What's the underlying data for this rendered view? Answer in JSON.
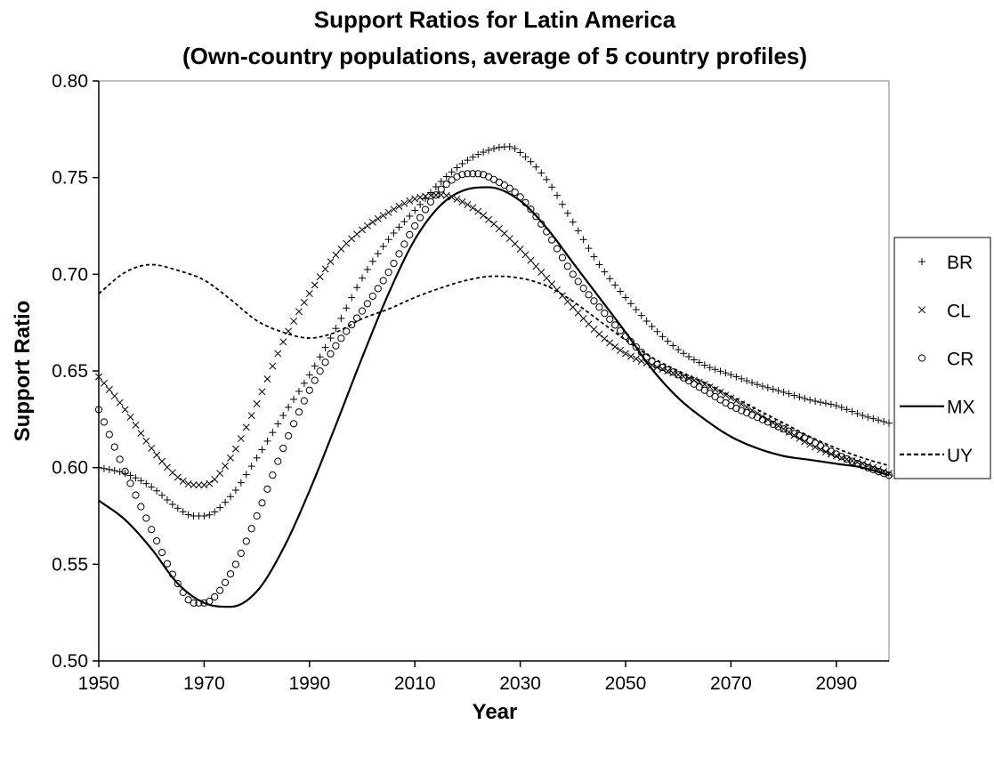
{
  "chart_data": {
    "type": "line",
    "title": "Support Ratios for Latin America",
    "subtitle": "(Own-country populations, average of 5 country profiles)",
    "xlabel": "Year",
    "ylabel": "Support Ratio",
    "xlim": [
      1950,
      2100
    ],
    "ylim": [
      0.5,
      0.8
    ],
    "x_ticks": [
      1950,
      1970,
      1990,
      2010,
      2030,
      2050,
      2070,
      2090
    ],
    "y_ticks": [
      0.5,
      0.55,
      0.6,
      0.65,
      0.7,
      0.75,
      0.8
    ],
    "x_tick_labels": [
      "1950",
      "1970",
      "1990",
      "2010",
      "2030",
      "2050",
      "2070",
      "2090"
    ],
    "y_tick_labels": [
      "0.50",
      "0.55",
      "0.60",
      "0.65",
      "0.70",
      "0.75",
      "0.80"
    ],
    "grid": false,
    "legend_position": "right",
    "series": [
      {
        "name": "BR",
        "style": "plus-markers",
        "color": "#000000",
        "x": [
          1950,
          1955,
          1960,
          1965,
          1968,
          1970,
          1975,
          1980,
          1985,
          1990,
          1995,
          2000,
          2005,
          2010,
          2015,
          2020,
          2025,
          2028,
          2030,
          2035,
          2040,
          2045,
          2050,
          2055,
          2060,
          2065,
          2070,
          2075,
          2080,
          2085,
          2090,
          2095,
          2100
        ],
        "y": [
          0.6,
          0.597,
          0.59,
          0.579,
          0.575,
          0.575,
          0.585,
          0.605,
          0.627,
          0.648,
          0.672,
          0.698,
          0.718,
          0.733,
          0.748,
          0.759,
          0.765,
          0.766,
          0.763,
          0.749,
          0.727,
          0.705,
          0.688,
          0.673,
          0.661,
          0.653,
          0.648,
          0.643,
          0.639,
          0.635,
          0.632,
          0.627,
          0.623
        ]
      },
      {
        "name": "CL",
        "style": "x-markers",
        "color": "#000000",
        "x": [
          1950,
          1955,
          1960,
          1965,
          1968,
          1970,
          1975,
          1980,
          1985,
          1990,
          1995,
          2000,
          2005,
          2010,
          2015,
          2020,
          2025,
          2030,
          2035,
          2040,
          2045,
          2050,
          2055,
          2060,
          2065,
          2070,
          2075,
          2080,
          2085,
          2090,
          2095,
          2100
        ],
        "y": [
          0.647,
          0.63,
          0.61,
          0.595,
          0.591,
          0.591,
          0.605,
          0.633,
          0.665,
          0.69,
          0.71,
          0.723,
          0.732,
          0.739,
          0.741,
          0.736,
          0.726,
          0.713,
          0.698,
          0.683,
          0.669,
          0.659,
          0.653,
          0.648,
          0.643,
          0.636,
          0.628,
          0.62,
          0.612,
          0.606,
          0.602,
          0.597
        ]
      },
      {
        "name": "CR",
        "style": "circle-markers",
        "color": "#000000",
        "x": [
          1950,
          1955,
          1960,
          1965,
          1968,
          1970,
          1975,
          1980,
          1985,
          1990,
          1995,
          2000,
          2005,
          2010,
          2015,
          2020,
          2022,
          2025,
          2030,
          2035,
          2040,
          2045,
          2050,
          2055,
          2060,
          2065,
          2070,
          2075,
          2080,
          2085,
          2090,
          2095,
          2100
        ],
        "y": [
          0.63,
          0.598,
          0.568,
          0.54,
          0.53,
          0.53,
          0.545,
          0.575,
          0.61,
          0.64,
          0.663,
          0.681,
          0.701,
          0.725,
          0.744,
          0.752,
          0.752,
          0.749,
          0.74,
          0.722,
          0.7,
          0.683,
          0.668,
          0.655,
          0.648,
          0.64,
          0.632,
          0.626,
          0.62,
          0.614,
          0.607,
          0.601,
          0.596
        ]
      },
      {
        "name": "MX",
        "style": "solid",
        "color": "#000000",
        "x": [
          1950,
          1955,
          1960,
          1965,
          1970,
          1975,
          1980,
          1985,
          1990,
          1995,
          2000,
          2005,
          2010,
          2015,
          2020,
          2024,
          2030,
          2035,
          2040,
          2045,
          2050,
          2055,
          2060,
          2065,
          2070,
          2075,
          2080,
          2085,
          2090,
          2095,
          2100
        ],
        "y": [
          0.583,
          0.573,
          0.558,
          0.54,
          0.53,
          0.528,
          0.536,
          0.558,
          0.588,
          0.622,
          0.657,
          0.69,
          0.718,
          0.736,
          0.744,
          0.745,
          0.738,
          0.724,
          0.706,
          0.688,
          0.67,
          0.651,
          0.636,
          0.625,
          0.616,
          0.61,
          0.606,
          0.604,
          0.602,
          0.6,
          0.596
        ]
      },
      {
        "name": "UY",
        "style": "dashed",
        "color": "#000000",
        "x": [
          1950,
          1955,
          1960,
          1965,
          1970,
          1975,
          1980,
          1985,
          1990,
          1995,
          2000,
          2005,
          2010,
          2015,
          2020,
          2025,
          2030,
          2035,
          2040,
          2045,
          2050,
          2055,
          2060,
          2065,
          2070,
          2075,
          2080,
          2085,
          2090,
          2095,
          2100
        ],
        "y": [
          0.69,
          0.701,
          0.705,
          0.702,
          0.697,
          0.687,
          0.676,
          0.67,
          0.667,
          0.67,
          0.677,
          0.682,
          0.688,
          0.693,
          0.697,
          0.699,
          0.698,
          0.694,
          0.686,
          0.676,
          0.666,
          0.657,
          0.65,
          0.644,
          0.637,
          0.63,
          0.623,
          0.616,
          0.61,
          0.605,
          0.601
        ]
      }
    ]
  }
}
